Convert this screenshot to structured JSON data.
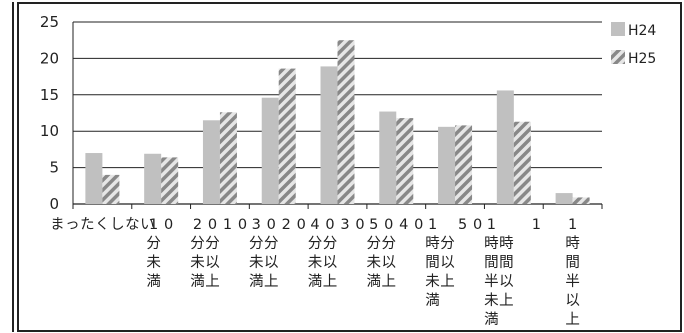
{
  "chart_data": {
    "type": "bar",
    "title": "",
    "xlabel": "",
    "ylabel": "",
    "ylim": [
      0,
      25
    ],
    "yticks": [
      0,
      5,
      10,
      15,
      20,
      25
    ],
    "grid": true,
    "legend_position": "top-right",
    "categories": [
      "まったくしない",
      "10分未満",
      "2010分未満分以上",
      "3020分未満分以上",
      "4030分未満分以上",
      "5040分未満分以上",
      "1 50時間分未満以上",
      "1 1時間時間半未満以上",
      "1時間半以上"
    ],
    "category_lines": [
      [
        [
          "ま",
          "っ",
          "た",
          "く",
          "し",
          "な",
          "い"
        ]
      ],
      [
        [
          "1",
          "0"
        ],
        [
          "分"
        ],
        [
          "未"
        ],
        [
          "満"
        ]
      ],
      [
        [
          "2",
          "0",
          "1",
          "0"
        ],
        [
          "分",
          "分"
        ],
        [
          "未",
          "以"
        ],
        [
          "満",
          "上"
        ]
      ],
      [
        [
          "3",
          "0",
          "2",
          "0"
        ],
        [
          "分",
          "分"
        ],
        [
          "未",
          "以"
        ],
        [
          "満",
          "上"
        ]
      ],
      [
        [
          "4",
          "0",
          "3",
          "0"
        ],
        [
          "分",
          "分"
        ],
        [
          "未",
          "以"
        ],
        [
          "満",
          "上"
        ]
      ],
      [
        [
          "5",
          "0",
          "4",
          "0"
        ],
        [
          "分",
          "分"
        ],
        [
          "未",
          "以"
        ],
        [
          "満",
          "上"
        ]
      ],
      [
        [
          "1",
          " ",
          "5",
          "0"
        ],
        [
          "時",
          "分"
        ],
        [
          "間",
          "以"
        ],
        [
          "未",
          "上"
        ],
        [
          "満",
          ""
        ]
      ],
      [
        [
          "1",
          " ",
          " ",
          "1"
        ],
        [
          "時",
          "時"
        ],
        [
          "間",
          "間"
        ],
        [
          "半",
          "以"
        ],
        [
          "未",
          "上"
        ],
        [
          "満",
          ""
        ]
      ],
      [
        [
          "1"
        ],
        [
          "時"
        ],
        [
          "間"
        ],
        [
          "半"
        ],
        [
          "以"
        ],
        [
          "上"
        ]
      ]
    ],
    "series": [
      {
        "name": "H24",
        "values": [
          7.0,
          6.9,
          11.5,
          14.6,
          18.9,
          12.7,
          10.6,
          15.6,
          1.5
        ],
        "color": "#c0c0c0",
        "pattern": "solid"
      },
      {
        "name": "H25",
        "values": [
          4.0,
          6.4,
          12.6,
          18.6,
          22.5,
          11.8,
          10.8,
          11.3,
          0.9
        ],
        "color": "#8c8c8c",
        "pattern": "diagonal-hatch"
      }
    ]
  }
}
